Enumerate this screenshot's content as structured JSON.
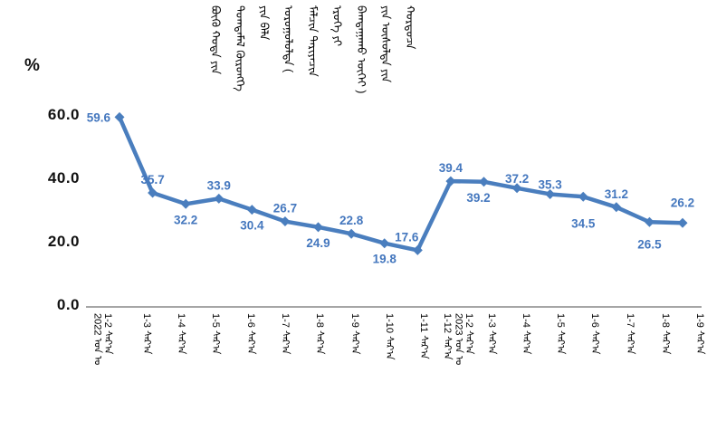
{
  "page": {
    "background": "#FFFFFF"
  },
  "chart_data": {
    "type": "line",
    "title": "ᠪᠦᠬᠦ ᠬᠣᠲᠠ ᠶᠢᠨ ᠲᠣᠭᠲᠠᠮᠠᠯ ᠬᠥᠷᠥᠩᠭᠡ ᠶᠢᠨ ᠪᠡᠯᠡ ᠣᠷᠣᠭᠤᠯᠤᠯᠲᠠ ( ᠮᠠᠯᠴᠢᠨ ᠲᠠᠷᠢᠶᠠᠴᠢᠨ ᠡᠷᠦᠬᠡ ᠶᠢ ᠪᠠᠭᠲᠠᠭᠠᠬᠤ ᠦᠭᠡᠢ ) ᠶᠢᠨ ᠥᠰᠦᠯᠲᠡ ᠶᠢᠨ ᠬᠤᠷᠳᠤᠴᠠ",
    "unit_label": "%",
    "legend": "none",
    "grid": "off",
    "ylim": [
      0,
      62
    ],
    "y_ticks": [
      {
        "value": 0,
        "label": "0.0"
      },
      {
        "value": 20,
        "label": "20.0"
      },
      {
        "value": 40,
        "label": "40.0"
      },
      {
        "value": 60,
        "label": "60.0"
      }
    ],
    "x_categories": [
      {
        "period": "2022 1-2",
        "label_line1": "1-2 ᠰᠠᠷ᠎ᠠ",
        "label_line2": "2022 ᠣᠨ ᠤ"
      },
      {
        "period": "2022 1-3",
        "label_line1": "1-3 ᠰᠠᠷ᠎ᠠ",
        "label_line2": null
      },
      {
        "period": "2022 1-4",
        "label_line1": "1-4 ᠰᠠᠷ᠎ᠠ",
        "label_line2": null
      },
      {
        "period": "2022 1-5",
        "label_line1": "1-5 ᠰᠠᠷ᠎ᠠ",
        "label_line2": null
      },
      {
        "period": "2022 1-6",
        "label_line1": "1-6 ᠰᠠᠷ᠎ᠠ",
        "label_line2": null
      },
      {
        "period": "2022 1-7",
        "label_line1": "1-7 ᠰᠠᠷ᠎ᠠ",
        "label_line2": null
      },
      {
        "period": "2022 1-8",
        "label_line1": "1-8 ᠰᠠᠷ᠎ᠠ",
        "label_line2": null
      },
      {
        "period": "2022 1-9",
        "label_line1": "1-9 ᠰᠠᠷ᠎ᠠ",
        "label_line2": null
      },
      {
        "period": "2022 1-10",
        "label_line1": "1-10 ᠰᠠᠷ᠎ᠠ",
        "label_line2": null
      },
      {
        "period": "2022 1-11",
        "label_line1": "1-11 ᠰᠠᠷ᠎ᠠ",
        "label_line2": null
      },
      {
        "period": "2022 1-12",
        "label_line1": "1-12 ᠰᠠᠷ᠎ᠠ",
        "label_line2": null
      },
      {
        "period": "2023 1-2",
        "label_line1": "1-2 ᠰᠠᠷ᠎ᠠ",
        "label_line2": "2023 ᠣᠨ ᠤ"
      },
      {
        "period": "2023 1-3",
        "label_line1": "1-3 ᠰᠠᠷ᠎ᠠ",
        "label_line2": null
      },
      {
        "period": "2023 1-4",
        "label_line1": "1-4 ᠰᠠᠷ᠎ᠠ",
        "label_line2": null
      },
      {
        "period": "2023 1-5",
        "label_line1": "1-5 ᠰᠠᠷ᠎ᠠ",
        "label_line2": null
      },
      {
        "period": "2023 1-6",
        "label_line1": "1-6 ᠰᠠᠷ᠎ᠠ",
        "label_line2": null
      },
      {
        "period": "2023 1-7",
        "label_line1": "1-7 ᠰᠠᠷ᠎ᠠ",
        "label_line2": null
      },
      {
        "period": "2023 1-8",
        "label_line1": "1-8 ᠰᠠᠷ᠎ᠠ",
        "label_line2": null
      },
      {
        "period": "2023 1-9",
        "label_line1": "1-9 ᠰᠠᠷ᠎ᠠ",
        "label_line2": null
      }
    ],
    "series": [
      {
        "name": "growth-rate-percent",
        "values": [
          59.6,
          35.7,
          32.2,
          33.9,
          30.4,
          26.7,
          24.9,
          22.8,
          19.8,
          17.6,
          null,
          39.4,
          39.2,
          37.2,
          35.3,
          34.5,
          31.2,
          26.5,
          26.2
        ]
      }
    ],
    "data_labels": [
      {
        "text": "59.6",
        "side": "left"
      },
      {
        "text": "35.7",
        "side": "above"
      },
      {
        "text": "32.2",
        "side": "below"
      },
      {
        "text": "33.9",
        "side": "above"
      },
      {
        "text": "30.4",
        "side": "below"
      },
      {
        "text": "26.7",
        "side": "above"
      },
      {
        "text": "24.9",
        "side": "below"
      },
      {
        "text": "22.8",
        "side": "above"
      },
      {
        "text": "19.8",
        "side": "below"
      },
      {
        "text": "17.6",
        "side": "above",
        "dx": -12
      },
      {
        "text": "39.4",
        "side": "above"
      },
      {
        "text": "39.2",
        "side": "below",
        "dx": -6
      },
      {
        "text": "37.2",
        "side": "above",
        "dy": 4
      },
      {
        "text": "35.3",
        "side": "above",
        "dy": 4
      },
      {
        "text": "34.5",
        "side": "below",
        "dy": 12
      },
      {
        "text": "31.2",
        "side": "above"
      },
      {
        "text": "26.5",
        "side": "below",
        "dy": 7
      },
      {
        "text": "26.2",
        "side": "above",
        "dy": -8
      }
    ],
    "colors": {
      "line": "#4A7EBE",
      "marker": "#4A7EBE",
      "data_label": "#4477BE",
      "axis_line": "#A6A6A6",
      "tick_text": "#111111"
    }
  }
}
